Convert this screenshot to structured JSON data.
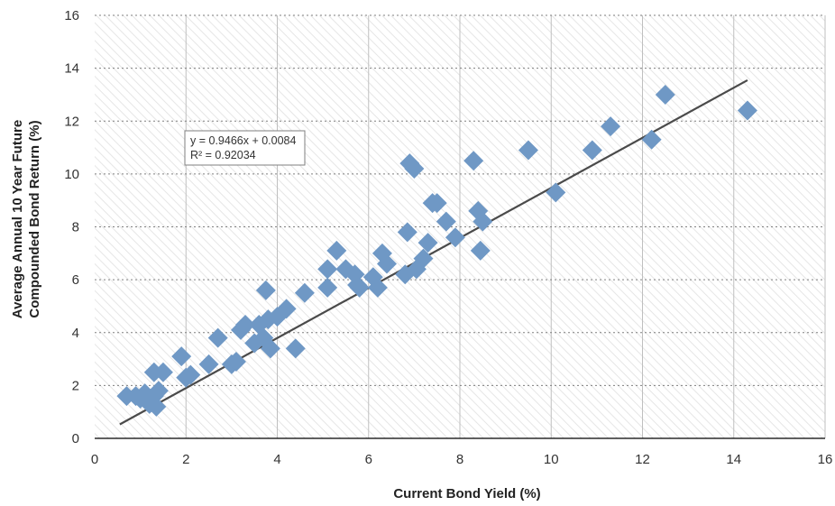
{
  "chart_data": {
    "type": "scatter",
    "title": "",
    "xlabel": "Current Bond Yield (%)",
    "ylabel_lines": [
      "Average Annual 10 Year Future",
      "Compounded Bond Return (%)"
    ],
    "xlim": [
      0,
      16
    ],
    "ylim": [
      0,
      16
    ],
    "x_ticks": [
      "0",
      "2",
      "4",
      "6",
      "8",
      "10",
      "12",
      "14",
      "16"
    ],
    "y_ticks": [
      "0",
      "2",
      "4",
      "6",
      "8",
      "10",
      "12",
      "14",
      "16"
    ],
    "grid": true,
    "marker": "diamond",
    "colors": {
      "marker": "#6f98c5",
      "trendline": "#4a4a4a",
      "grid_vertical": "#bfbfbf",
      "grid_horizontal": "#7f7f7f",
      "hatch": "#e6e6e6"
    },
    "trendline": {
      "slope": 0.9466,
      "intercept": 0.0084,
      "x_range": [
        0.55,
        14.3
      ]
    },
    "equation_label": {
      "line1": "y = 0.9466x + 0.0084",
      "line2": "R² = 0.92034"
    },
    "points": [
      [
        0.7,
        1.6
      ],
      [
        0.9,
        1.6
      ],
      [
        1.0,
        1.5
      ],
      [
        1.1,
        1.7
      ],
      [
        1.2,
        1.3
      ],
      [
        1.3,
        1.6
      ],
      [
        1.35,
        1.2
      ],
      [
        1.4,
        1.8
      ],
      [
        1.3,
        2.5
      ],
      [
        1.5,
        2.5
      ],
      [
        1.9,
        3.1
      ],
      [
        2.0,
        2.3
      ],
      [
        2.1,
        2.4
      ],
      [
        2.5,
        2.8
      ],
      [
        2.7,
        3.8
      ],
      [
        3.0,
        2.8
      ],
      [
        3.1,
        2.9
      ],
      [
        3.2,
        4.1
      ],
      [
        3.3,
        4.3
      ],
      [
        3.5,
        3.6
      ],
      [
        3.6,
        4.3
      ],
      [
        3.7,
        3.8
      ],
      [
        3.75,
        5.6
      ],
      [
        3.8,
        4.5
      ],
      [
        3.85,
        3.4
      ],
      [
        4.0,
        4.6
      ],
      [
        4.2,
        4.9
      ],
      [
        4.4,
        3.4
      ],
      [
        4.6,
        5.5
      ],
      [
        5.1,
        6.4
      ],
      [
        5.1,
        5.7
      ],
      [
        5.3,
        7.1
      ],
      [
        5.5,
        6.4
      ],
      [
        5.7,
        6.2
      ],
      [
        5.75,
        5.8
      ],
      [
        5.8,
        5.7
      ],
      [
        6.1,
        6.1
      ],
      [
        6.2,
        5.7
      ],
      [
        6.3,
        7.0
      ],
      [
        6.4,
        6.6
      ],
      [
        6.8,
        6.2
      ],
      [
        6.85,
        7.8
      ],
      [
        6.9,
        10.4
      ],
      [
        7.0,
        10.2
      ],
      [
        7.05,
        6.4
      ],
      [
        7.2,
        6.8
      ],
      [
        7.3,
        7.4
      ],
      [
        7.4,
        8.9
      ],
      [
        7.5,
        8.9
      ],
      [
        7.7,
        8.2
      ],
      [
        7.9,
        7.6
      ],
      [
        8.3,
        10.5
      ],
      [
        8.4,
        8.6
      ],
      [
        8.45,
        7.1
      ],
      [
        8.5,
        8.2
      ],
      [
        9.5,
        10.9
      ],
      [
        10.1,
        9.3
      ],
      [
        10.9,
        10.9
      ],
      [
        11.3,
        11.8
      ],
      [
        12.2,
        11.3
      ],
      [
        12.5,
        13.0
      ],
      [
        14.3,
        12.4
      ]
    ]
  }
}
